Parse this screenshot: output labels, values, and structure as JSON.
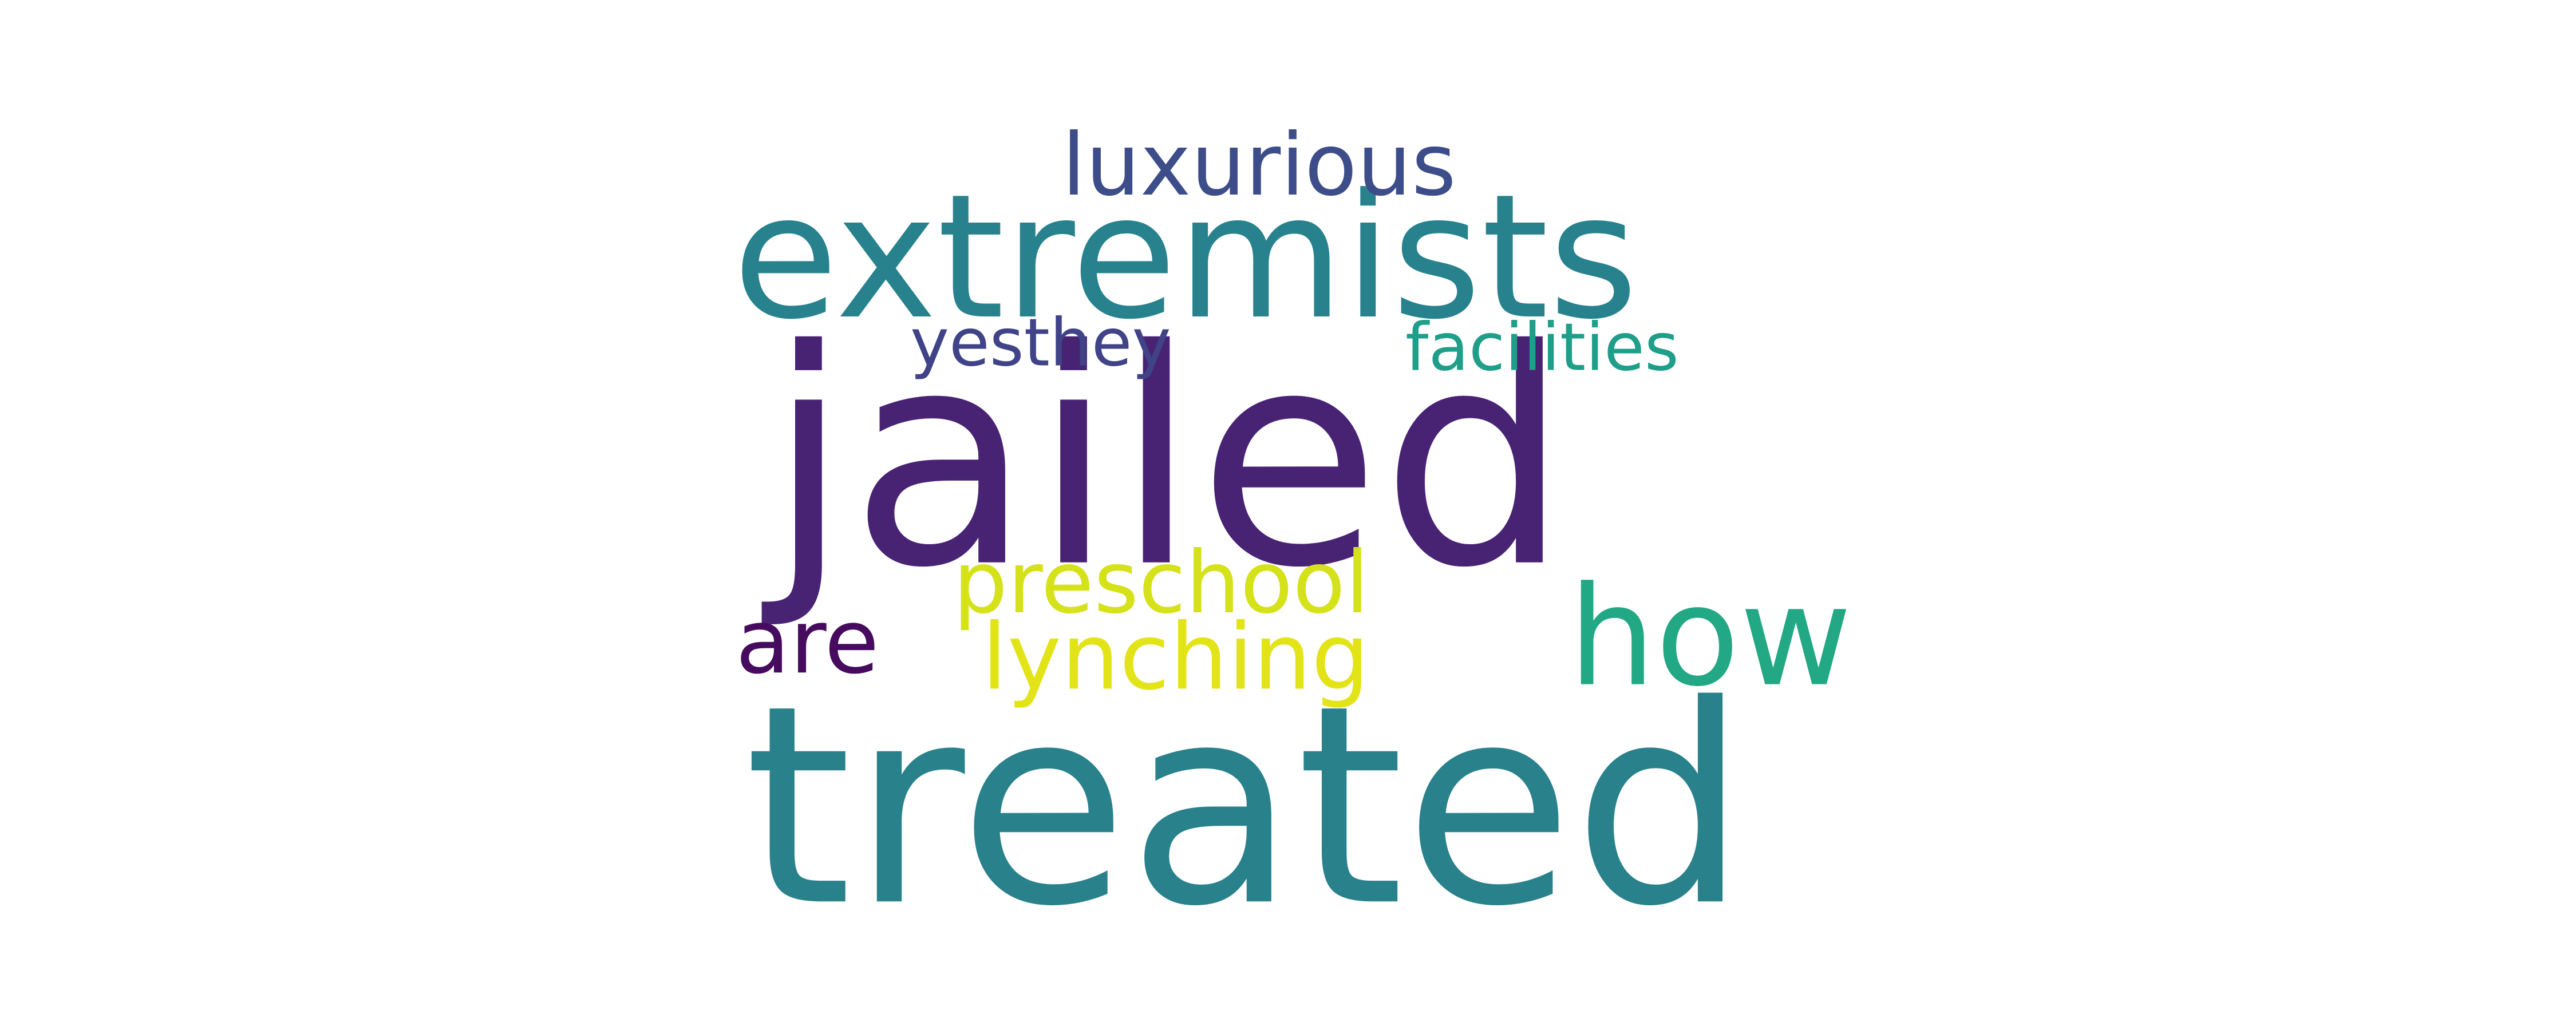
{
  "words": [
    {
      "text": "treated",
      "color": "#29818c"
    },
    {
      "text": "jailed",
      "color": "#482374"
    },
    {
      "text": "extremists",
      "color": "#27828e"
    },
    {
      "text": "how",
      "color": "#22a884"
    },
    {
      "text": "preschool",
      "color": "#d5e21a"
    },
    {
      "text": "lynching",
      "color": "#e3e418"
    },
    {
      "text": "luxurious",
      "color": "#3d4d8a"
    },
    {
      "text": "facilities",
      "color": "#1f9e89"
    },
    {
      "text": "yesthey",
      "color": "#404387"
    },
    {
      "text": "are",
      "color": "#460b5e"
    }
  ]
}
